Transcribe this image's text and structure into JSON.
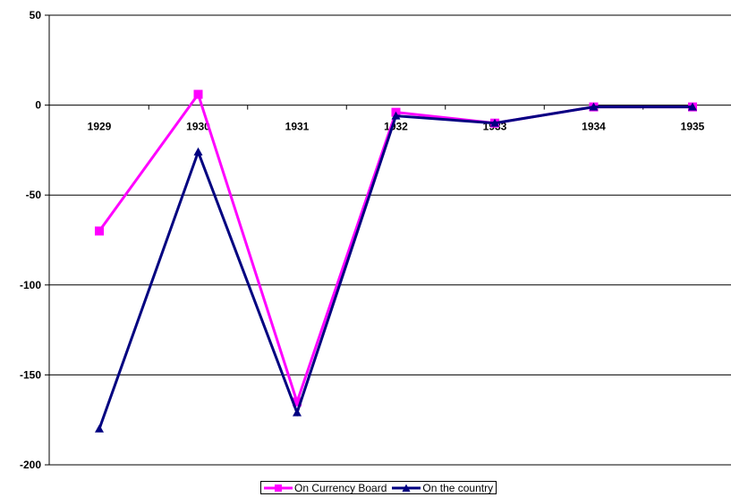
{
  "chart_data": {
    "type": "line",
    "title": "",
    "xlabel": "",
    "ylabel": "",
    "categories": [
      "1929",
      "1930",
      "1931",
      "1932",
      "1933",
      "1934",
      "1935"
    ],
    "ylim": [
      -200,
      50
    ],
    "yticks": [
      50,
      0,
      -50,
      -100,
      -150,
      -200
    ],
    "grid": true,
    "legend_position": "bottom",
    "series": [
      {
        "name": "On Currency Board",
        "color": "#FF00FF",
        "marker": "square",
        "values": [
          -70,
          6,
          -165,
          -4,
          -10,
          -1,
          -1
        ]
      },
      {
        "name": "On the country",
        "color": "#000080",
        "marker": "triangle",
        "values": [
          -180,
          -26,
          -171,
          -6,
          -10,
          -1,
          -1
        ]
      }
    ]
  }
}
